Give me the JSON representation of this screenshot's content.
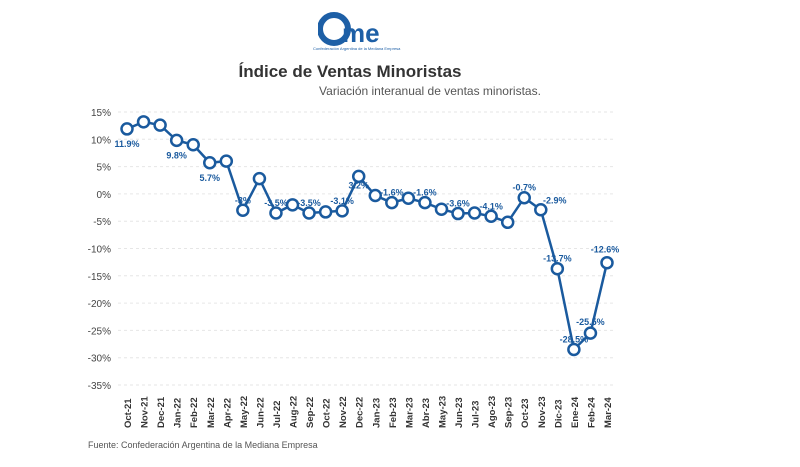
{
  "logo": {
    "text": "came",
    "tagline": "Confederación Argentina de la Mediana Empresa"
  },
  "header": {
    "title": "Índice de Ventas Minoristas",
    "subtitle": "Variación interanual de ventas minoristas."
  },
  "footer": {
    "source": "Fuente: Confederación Argentina de la Mediana Empresa"
  },
  "colors": {
    "line": "#1a5a9e",
    "label": "#1a5a9e"
  },
  "chart_data": {
    "type": "line",
    "title": "Índice de Ventas Minoristas",
    "ylim": [
      -35,
      15
    ],
    "yticks": [
      15,
      10,
      5,
      0,
      -5,
      -10,
      -15,
      -20,
      -25,
      -30,
      -35
    ],
    "ytick_labels": [
      "15%",
      "10%",
      "5%",
      "0%",
      "-5%",
      "-10%",
      "-15%",
      "-20%",
      "-25%",
      "-30%",
      "-35%"
    ],
    "grid": true,
    "categories": [
      "Oct-21",
      "Nov-21",
      "Dec-21",
      "Jan-22",
      "Feb-22",
      "Mar-22",
      "Apr-22",
      "May-22",
      "Jun-22",
      "Jul-22",
      "Aug-22",
      "Sep-22",
      "Oct-22",
      "Nov-22",
      "Dec-22",
      "Jan-23",
      "Feb-23",
      "Mar-23",
      "Abr-23",
      "May-23",
      "Jun-23",
      "Jul-23",
      "Ago-23",
      "Sep-23",
      "Oct-23",
      "Nov-23",
      "Dic-23",
      "Ene-24",
      "Feb-24",
      "Mar-24"
    ],
    "values": [
      11.9,
      13.2,
      12.6,
      9.8,
      9.0,
      5.7,
      6.0,
      -3.0,
      2.8,
      -3.5,
      -2.0,
      -3.5,
      -3.3,
      -3.1,
      3.2,
      -0.3,
      -1.6,
      -0.8,
      -1.6,
      -2.8,
      -3.6,
      -3.5,
      -4.1,
      -5.2,
      -0.7,
      -2.9,
      -13.7,
      -28.5,
      -25.5,
      -12.6
    ],
    "data_labels": [
      "11.9%",
      null,
      null,
      "9.8%",
      null,
      "5.7%",
      null,
      "-3%",
      null,
      "-3.5%",
      null,
      "-3.5%",
      null,
      "-3.1%",
      "3.2%",
      null,
      "-1.6%",
      null,
      "-1.6%",
      null,
      "-3.6%",
      null,
      "-4.1%",
      null,
      "-0.7%",
      "-2.9%",
      "-13.7%",
      "-28.5%",
      "-25.5%",
      "-12.6%"
    ]
  }
}
